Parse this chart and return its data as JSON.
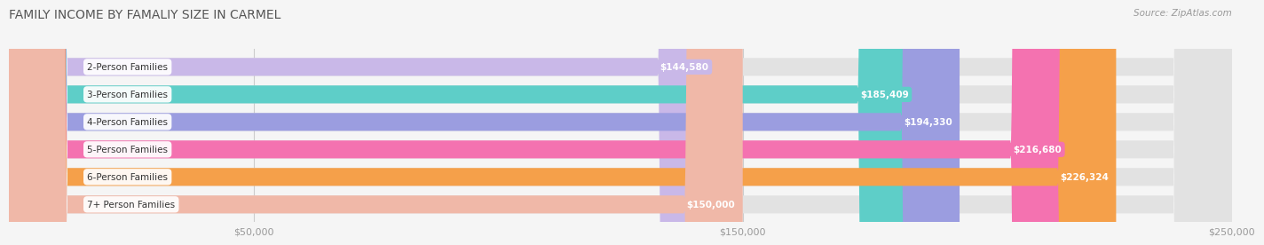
{
  "title": "FAMILY INCOME BY FAMALIY SIZE IN CARMEL",
  "source": "Source: ZipAtlas.com",
  "categories": [
    "2-Person Families",
    "3-Person Families",
    "4-Person Families",
    "5-Person Families",
    "6-Person Families",
    "7+ Person Families"
  ],
  "values": [
    144580,
    185409,
    194330,
    216680,
    226324,
    150000
  ],
  "bar_colors": [
    "#c9b8e8",
    "#5ecec8",
    "#9b9de0",
    "#f472b0",
    "#f5a04a",
    "#f0b8a8"
  ],
  "value_labels": [
    "$144,580",
    "$185,409",
    "$194,330",
    "$216,680",
    "$226,324",
    "$150,000"
  ],
  "xlim": [
    0,
    250000
  ],
  "xtick_values": [
    50000,
    150000,
    250000
  ],
  "xtick_labels": [
    "$50,000",
    "$150,000",
    "$250,000"
  ],
  "background_color": "#f5f5f5",
  "bar_background_color": "#e2e2e2",
  "title_fontsize": 10,
  "label_fontsize": 7.5,
  "value_fontsize": 7.5,
  "bar_height": 0.65
}
